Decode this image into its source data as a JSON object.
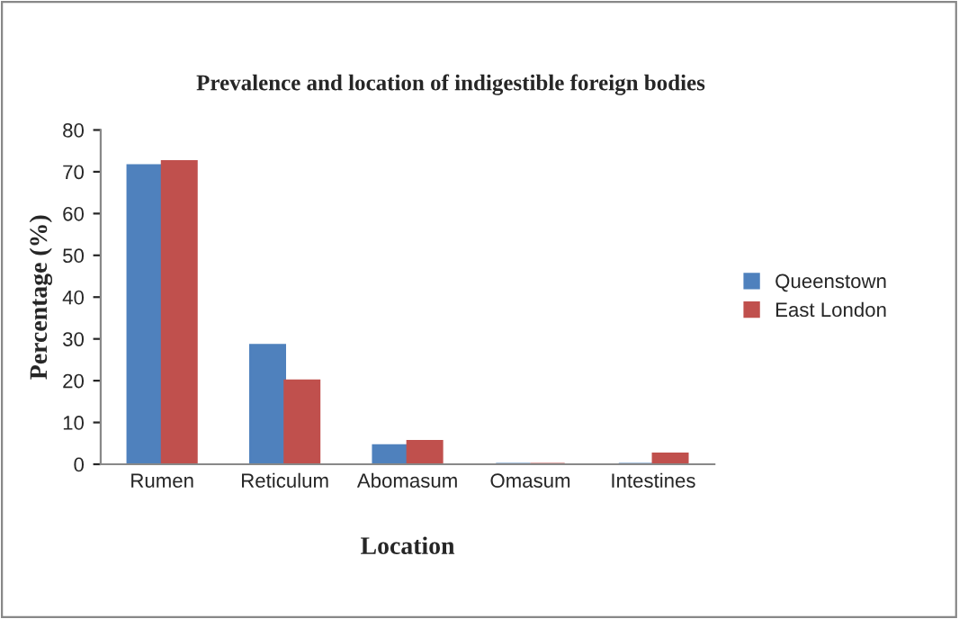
{
  "chart_data": {
    "type": "bar",
    "title": "Prevalence and location of indigestible foreign bodies",
    "xlabel": "Location",
    "ylabel": "Percentage (%)",
    "categories": [
      "Rumen",
      "Reticulum",
      "Abomasum",
      "Omasum",
      "Intestines"
    ],
    "series": [
      {
        "name": "Queenstown",
        "color": "#4f81bd",
        "values": [
          71.5,
          28.5,
          4.5,
          0,
          0
        ]
      },
      {
        "name": "East London",
        "color": "#c0504d",
        "values": [
          72.5,
          20,
          5.5,
          0,
          2.5
        ]
      }
    ],
    "ylim": [
      0,
      80
    ],
    "yticks": [
      0,
      10,
      20,
      30,
      40,
      50,
      60,
      70,
      80
    ],
    "grid": false,
    "legend": "right"
  }
}
